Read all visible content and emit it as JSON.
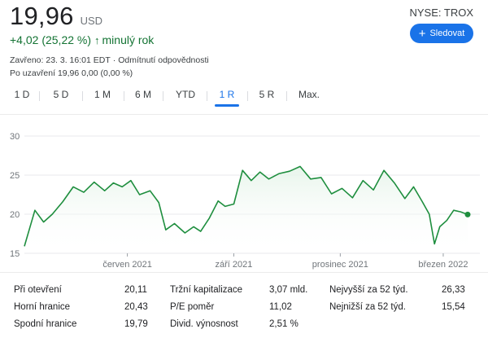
{
  "quote": {
    "price": "19,96",
    "currency": "USD",
    "ticker": "NYSE: TROX",
    "change_text": "+4,02 (25,22 %)",
    "change_arrow": "↑",
    "change_period": "minulý rok",
    "follow_label": "Sledovat",
    "closed_text": "Zavřeno: 23. 3. 16:01 EDT",
    "disclaimer": "Odmítnutí odpovědnosti",
    "after_hours": "Po uzavření 19,96 0,00 (0,00 %)"
  },
  "tabs": [
    {
      "label": "1 D"
    },
    {
      "label": "5 D"
    },
    {
      "label": "1 M"
    },
    {
      "label": "6 M"
    },
    {
      "label": "YTD"
    },
    {
      "label": "1 R",
      "active": true
    },
    {
      "label": "5 R"
    },
    {
      "label": "Max."
    }
  ],
  "colors": {
    "line": "#1e8e3e",
    "fill": "#e6f4ea",
    "accent": "#1a73e8"
  },
  "chart_data": {
    "type": "area",
    "title": "",
    "xlabel": "",
    "ylabel": "",
    "ylim": [
      15,
      30
    ],
    "yticks": [
      "30",
      "25",
      "20",
      "15"
    ],
    "xticks": [
      {
        "label": "červen 2021",
        "month": 2.95
      },
      {
        "label": "září 2021",
        "month": 6.0
      },
      {
        "label": "prosinec 2021",
        "month": 9.05
      },
      {
        "label": "březen 2022",
        "month": 12.0
      }
    ],
    "x_months": [
      0,
      0.3,
      0.55,
      0.8,
      1.1,
      1.4,
      1.7,
      2.0,
      2.3,
      2.55,
      2.8,
      3.05,
      3.3,
      3.6,
      3.85,
      4.05,
      4.3,
      4.6,
      4.85,
      5.05,
      5.3,
      5.55,
      5.75,
      6.0,
      6.25,
      6.5,
      6.75,
      7.0,
      7.3,
      7.6,
      7.9,
      8.2,
      8.5,
      8.8,
      9.1,
      9.4,
      9.7,
      10.0,
      10.3,
      10.6,
      10.9,
      11.15,
      11.4,
      11.6,
      11.75,
      11.9,
      12.1,
      12.3,
      12.5,
      12.7
    ],
    "values": [
      15.9,
      20.5,
      19.0,
      20.0,
      21.6,
      23.5,
      22.8,
      24.1,
      23.0,
      24.0,
      23.5,
      24.3,
      22.5,
      23.0,
      21.5,
      18.0,
      18.8,
      17.6,
      18.4,
      17.8,
      19.5,
      21.7,
      21.0,
      21.3,
      25.6,
      24.3,
      25.4,
      24.5,
      25.2,
      25.5,
      26.1,
      24.5,
      24.7,
      22.6,
      23.3,
      22.1,
      24.3,
      23.1,
      25.6,
      24.0,
      22.0,
      23.5,
      21.6,
      20.0,
      16.2,
      18.4,
      19.2,
      20.5,
      20.3,
      19.96
    ]
  },
  "stats": [
    {
      "label": "Při otevření",
      "value": "20,11"
    },
    {
      "label": "Horní hranice",
      "value": "20,43"
    },
    {
      "label": "Spodní hranice",
      "value": "19,79"
    },
    {
      "label": "Tržní kapitalizace",
      "value": "3,07 mld."
    },
    {
      "label": "P/E poměr",
      "value": "11,02"
    },
    {
      "label": "Divid. výnosnost",
      "value": "2,51 %"
    },
    {
      "label": "Nejvyšší za 52 týd.",
      "value": "26,33"
    },
    {
      "label": "Nejnižší za 52 týd.",
      "value": "15,54"
    }
  ]
}
